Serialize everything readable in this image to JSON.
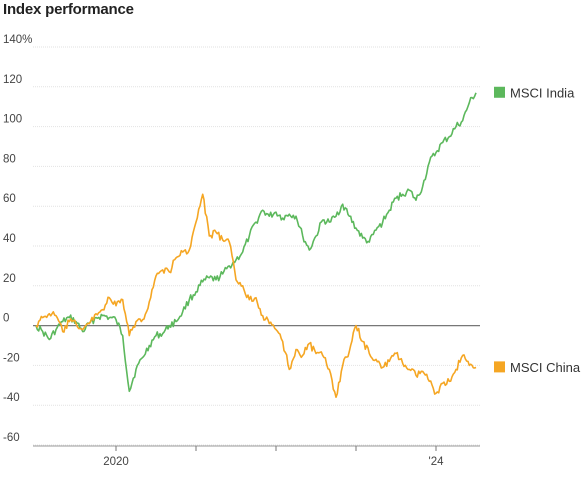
{
  "chart_data": {
    "type": "line",
    "title": "Index performance",
    "y_unit": "%",
    "ylim": [
      -60,
      140
    ],
    "y_ticks": [
      140,
      120,
      100,
      80,
      60,
      40,
      20,
      0,
      -20,
      -40,
      -60
    ],
    "y_tick_labels": [
      "140%",
      "120",
      "100",
      "80",
      "60",
      "40",
      "20",
      "0",
      "-20",
      "-40",
      "-60"
    ],
    "x_range": [
      "2019-01",
      "2024-07"
    ],
    "x_tick_dates": [
      "2020-01",
      "2021-01",
      "2022-01",
      "2023-01",
      "2024-01"
    ],
    "x_tick_labels": [
      "2020",
      "",
      "",
      "",
      "'24"
    ],
    "grid": true,
    "legend_placement": "right, at line ends",
    "series": [
      {
        "name": "MSCI India",
        "color": "#5cb85c",
        "points": [
          [
            "2019-01",
            0
          ],
          [
            "2019-02",
            -3
          ],
          [
            "2019-03",
            -7
          ],
          [
            "2019-04",
            -2
          ],
          [
            "2019-05",
            2
          ],
          [
            "2019-06",
            4
          ],
          [
            "2019-07",
            2
          ],
          [
            "2019-08",
            -3
          ],
          [
            "2019-09",
            1
          ],
          [
            "2019-10",
            4
          ],
          [
            "2019-11",
            5
          ],
          [
            "2019-12",
            4
          ],
          [
            "2020-01",
            3
          ],
          [
            "2020-02",
            -5
          ],
          [
            "2020-03",
            -33
          ],
          [
            "2020-04",
            -22
          ],
          [
            "2020-05",
            -16
          ],
          [
            "2020-06",
            -10
          ],
          [
            "2020-07",
            -5
          ],
          [
            "2020-08",
            -4
          ],
          [
            "2020-09",
            0
          ],
          [
            "2020-10",
            2
          ],
          [
            "2020-11",
            7
          ],
          [
            "2020-12",
            13
          ],
          [
            "2021-01",
            17
          ],
          [
            "2021-02",
            22
          ],
          [
            "2021-03",
            24
          ],
          [
            "2021-04",
            23
          ],
          [
            "2021-05",
            26
          ],
          [
            "2021-06",
            30
          ],
          [
            "2021-07",
            33
          ],
          [
            "2021-08",
            37
          ],
          [
            "2021-09",
            45
          ],
          [
            "2021-10",
            52
          ],
          [
            "2021-11",
            58
          ],
          [
            "2021-12",
            55
          ],
          [
            "2022-01",
            57
          ],
          [
            "2022-02",
            54
          ],
          [
            "2022-03",
            56
          ],
          [
            "2022-04",
            55
          ],
          [
            "2022-05",
            45
          ],
          [
            "2022-06",
            38
          ],
          [
            "2022-07",
            45
          ],
          [
            "2022-08",
            53
          ],
          [
            "2022-09",
            52
          ],
          [
            "2022-10",
            55
          ],
          [
            "2022-11",
            61
          ],
          [
            "2022-12",
            55
          ],
          [
            "2023-01",
            49
          ],
          [
            "2023-02",
            44
          ],
          [
            "2023-03",
            42
          ],
          [
            "2023-04",
            48
          ],
          [
            "2023-05",
            52
          ],
          [
            "2023-06",
            58
          ],
          [
            "2023-07",
            64
          ],
          [
            "2023-08",
            66
          ],
          [
            "2023-09",
            68
          ],
          [
            "2023-10",
            63
          ],
          [
            "2023-11",
            70
          ],
          [
            "2023-12",
            82
          ],
          [
            "2024-01",
            87
          ],
          [
            "2024-02",
            92
          ],
          [
            "2024-03",
            95
          ],
          [
            "2024-04",
            100
          ],
          [
            "2024-05",
            103
          ],
          [
            "2024-06",
            112
          ],
          [
            "2024-07",
            117
          ]
        ]
      },
      {
        "name": "MSCI China",
        "color": "#f5a623",
        "points": [
          [
            "2019-01",
            0
          ],
          [
            "2019-02",
            4
          ],
          [
            "2019-03",
            6
          ],
          [
            "2019-04",
            5
          ],
          [
            "2019-05",
            -3
          ],
          [
            "2019-06",
            2
          ],
          [
            "2019-07",
            1
          ],
          [
            "2019-08",
            -2
          ],
          [
            "2019-09",
            1
          ],
          [
            "2019-10",
            6
          ],
          [
            "2019-11",
            8
          ],
          [
            "2019-12",
            14
          ],
          [
            "2020-01",
            10
          ],
          [
            "2020-02",
            13
          ],
          [
            "2020-03",
            -5
          ],
          [
            "2020-04",
            2
          ],
          [
            "2020-05",
            3
          ],
          [
            "2020-06",
            12
          ],
          [
            "2020-07",
            25
          ],
          [
            "2020-08",
            28
          ],
          [
            "2020-09",
            27
          ],
          [
            "2020-10",
            34
          ],
          [
            "2020-11",
            37
          ],
          [
            "2020-12",
            38
          ],
          [
            "2021-01",
            52
          ],
          [
            "2021-02",
            66
          ],
          [
            "2021-03",
            45
          ],
          [
            "2021-04",
            47
          ],
          [
            "2021-05",
            43
          ],
          [
            "2021-06",
            42
          ],
          [
            "2021-07",
            23
          ],
          [
            "2021-08",
            20
          ],
          [
            "2021-09",
            13
          ],
          [
            "2021-10",
            14
          ],
          [
            "2021-11",
            5
          ],
          [
            "2021-12",
            1
          ],
          [
            "2022-01",
            -2
          ],
          [
            "2022-02",
            -8
          ],
          [
            "2022-03",
            -22
          ],
          [
            "2022-04",
            -12
          ],
          [
            "2022-05",
            -15
          ],
          [
            "2022-06",
            -9
          ],
          [
            "2022-07",
            -14
          ],
          [
            "2022-08",
            -15
          ],
          [
            "2022-09",
            -22
          ],
          [
            "2022-10",
            -36
          ],
          [
            "2022-11",
            -20
          ],
          [
            "2022-12",
            -13
          ],
          [
            "2023-01",
            0
          ],
          [
            "2023-02",
            -8
          ],
          [
            "2023-03",
            -14
          ],
          [
            "2023-04",
            -17
          ],
          [
            "2023-05",
            -21
          ],
          [
            "2023-06",
            -18
          ],
          [
            "2023-07",
            -14
          ],
          [
            "2023-08",
            -19
          ],
          [
            "2023-09",
            -22
          ],
          [
            "2023-10",
            -25
          ],
          [
            "2023-11",
            -23
          ],
          [
            "2023-12",
            -28
          ],
          [
            "2024-01",
            -34
          ],
          [
            "2024-02",
            -29
          ],
          [
            "2024-03",
            -28
          ],
          [
            "2024-04",
            -22
          ],
          [
            "2024-05",
            -15
          ],
          [
            "2024-06",
            -20
          ],
          [
            "2024-07",
            -21
          ]
        ]
      }
    ]
  }
}
